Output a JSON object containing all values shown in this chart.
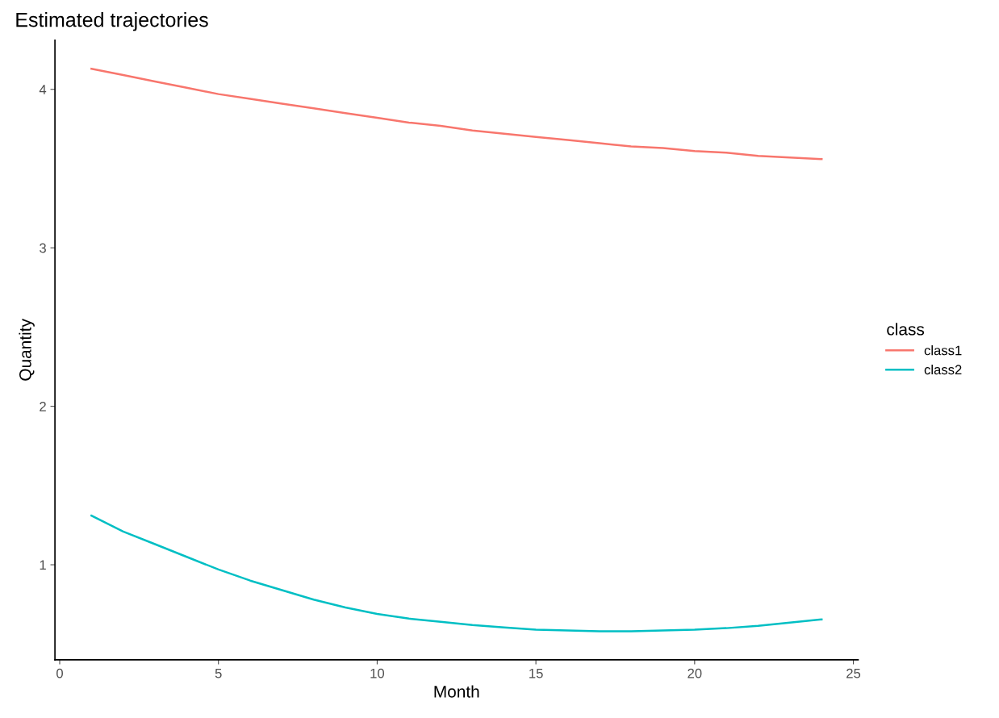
{
  "chart_data": {
    "type": "line",
    "title": "Estimated trajectories",
    "xlabel": "Month",
    "ylabel": "Quantity",
    "legend_title": "class",
    "legend": "right",
    "grid": false,
    "marker": "none",
    "line_style": "solid",
    "x": [
      1,
      2,
      3,
      4,
      5,
      6,
      7,
      8,
      9,
      10,
      11,
      12,
      13,
      14,
      15,
      16,
      17,
      18,
      19,
      20,
      21,
      22,
      23,
      24
    ],
    "xlim": [
      -0.15,
      25.15
    ],
    "xticks": [
      0,
      5,
      10,
      15,
      20,
      25
    ],
    "ylim": [
      0.4,
      4.31
    ],
    "yticks": [
      1,
      2,
      3,
      4
    ],
    "series": [
      {
        "name": "class1",
        "color": "#f8766d",
        "values": [
          4.13,
          4.09,
          4.05,
          4.01,
          3.97,
          3.94,
          3.91,
          3.88,
          3.85,
          3.82,
          3.79,
          3.77,
          3.74,
          3.72,
          3.7,
          3.68,
          3.66,
          3.64,
          3.63,
          3.61,
          3.6,
          3.58,
          3.57,
          3.56
        ]
      },
      {
        "name": "class2",
        "color": "#00bfc4",
        "values": [
          1.31,
          1.21,
          1.13,
          1.05,
          0.97,
          0.9,
          0.84,
          0.78,
          0.73,
          0.69,
          0.66,
          0.64,
          0.62,
          0.605,
          0.59,
          0.585,
          0.58,
          0.58,
          0.585,
          0.59,
          0.6,
          0.615,
          0.635,
          0.655
        ]
      }
    ]
  }
}
